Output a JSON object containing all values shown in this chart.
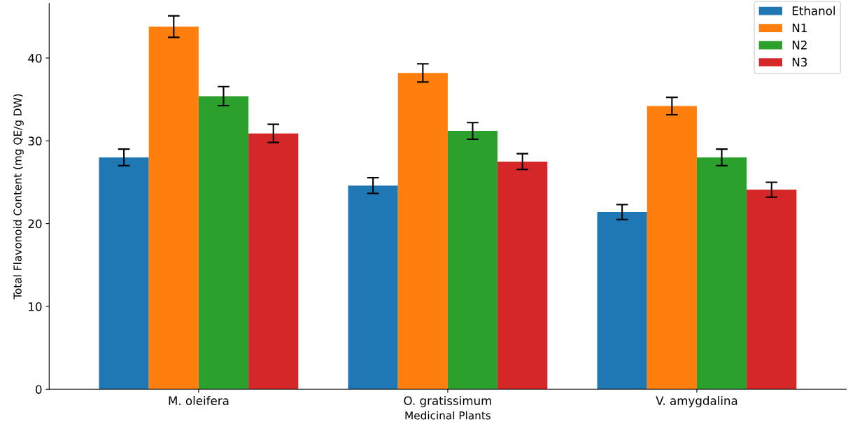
{
  "chart_data": {
    "type": "bar",
    "xlabel": "Medicinal Plants",
    "ylabel": "Total Flavonoid Content (mg QE/g DW)",
    "categories": [
      "M. oleifera",
      "O. gratissimum",
      "V. amygdalina"
    ],
    "series": [
      {
        "name": "Ethanol",
        "color": "#1f77b4",
        "values": [
          28.0,
          24.6,
          21.4
        ],
        "errors": [
          1.0,
          0.95,
          0.9
        ]
      },
      {
        "name": "N1",
        "color": "#ff7f0e",
        "values": [
          43.8,
          38.2,
          34.2
        ],
        "errors": [
          1.3,
          1.1,
          1.05
        ]
      },
      {
        "name": "N2",
        "color": "#2ca02c",
        "values": [
          35.4,
          31.2,
          28.0
        ],
        "errors": [
          1.15,
          1.0,
          1.0
        ]
      },
      {
        "name": "N3",
        "color": "#d62728",
        "values": [
          30.9,
          27.5,
          24.1
        ],
        "errors": [
          1.1,
          0.95,
          0.9
        ]
      }
    ],
    "ylim": [
      0,
      46.6
    ],
    "yticks": [
      0,
      10,
      20,
      30,
      40
    ],
    "grid": false,
    "legend": "top right"
  }
}
